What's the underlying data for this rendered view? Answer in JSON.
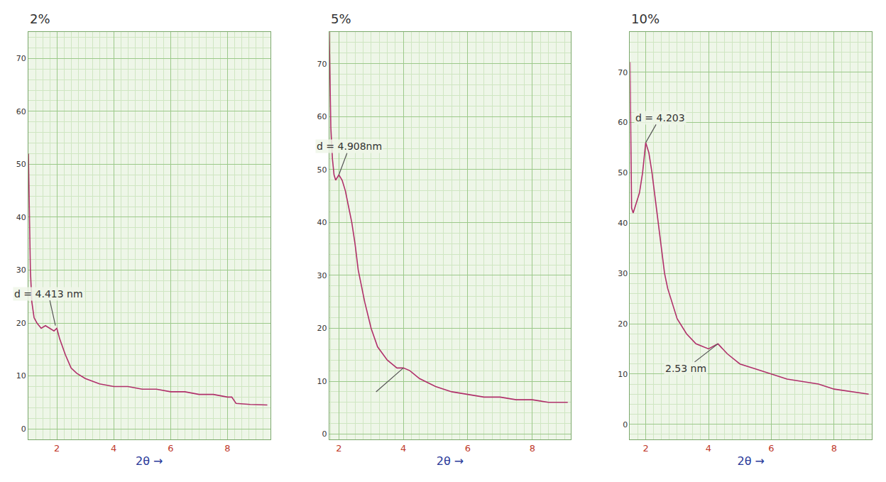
{
  "chart_data": [
    {
      "type": "line",
      "title": "2%",
      "x_label": "2θ →",
      "color": "#b0306a",
      "grid": true,
      "x": [
        1.0,
        1.03,
        1.07,
        1.12,
        1.2,
        1.3,
        1.45,
        1.6,
        1.75,
        1.9,
        2.0,
        2.1,
        2.3,
        2.5,
        2.7,
        3.0,
        3.5,
        4.0,
        4.5,
        5.0,
        5.5,
        6.0,
        6.5,
        7.0,
        7.5,
        8.0,
        8.15,
        8.3,
        8.8,
        9.4
      ],
      "values": [
        52,
        40,
        30,
        24,
        21,
        20,
        19,
        19.5,
        19,
        18.5,
        19,
        17,
        14,
        11.5,
        10.5,
        9.5,
        8.5,
        8,
        8,
        7.5,
        7.5,
        7,
        7,
        6.5,
        6.5,
        6,
        6,
        4.8,
        4.6,
        4.5
      ],
      "xlim": [
        1.0,
        9.5
      ],
      "ylim": [
        -2,
        75
      ],
      "xticks": [
        2,
        4,
        6,
        8
      ],
      "yticks": [
        0,
        10,
        20,
        30,
        40,
        50,
        60,
        70
      ],
      "annotations": [
        {
          "text": "d = 4.413 nm",
          "x": 1.95,
          "y": 19.5
        }
      ]
    },
    {
      "type": "line",
      "title": "5%",
      "x_label": "2θ →",
      "color": "#b0306a",
      "grid": true,
      "x": [
        1.7,
        1.72,
        1.75,
        1.8,
        1.85,
        1.9,
        2.0,
        2.1,
        2.2,
        2.3,
        2.4,
        2.5,
        2.6,
        2.8,
        3.0,
        3.2,
        3.5,
        3.8,
        4.0,
        4.2,
        4.5,
        5.0,
        5.5,
        6.0,
        6.5,
        7.0,
        7.5,
        8.0,
        8.5,
        9.1
      ],
      "values": [
        76,
        68,
        58,
        52,
        49,
        48,
        49,
        48,
        46,
        43,
        40,
        36,
        31,
        25,
        20,
        16.5,
        14,
        12.5,
        12.5,
        12,
        10.5,
        9,
        8,
        7.5,
        7,
        7,
        6.5,
        6.5,
        6,
        6
      ],
      "xlim": [
        1.7,
        9.2
      ],
      "ylim": [
        -1,
        76
      ],
      "xticks": [
        2,
        4,
        6,
        8
      ],
      "yticks": [
        0,
        10,
        20,
        30,
        40,
        50,
        60,
        70
      ],
      "annotations": [
        {
          "text": "d = 4.908nm",
          "x": 2.0,
          "y": 49
        },
        {
          "text": "",
          "x": 4.0,
          "y": 12.5
        }
      ]
    },
    {
      "type": "line",
      "title": "10%",
      "x_label": "2θ →",
      "color": "#b0306a",
      "grid": true,
      "x": [
        1.5,
        1.52,
        1.55,
        1.6,
        1.7,
        1.8,
        1.9,
        2.0,
        2.1,
        2.2,
        2.3,
        2.4,
        2.5,
        2.6,
        2.7,
        2.85,
        3.0,
        3.3,
        3.6,
        4.0,
        4.3,
        4.6,
        5.0,
        5.5,
        6.0,
        6.5,
        7.0,
        7.5,
        8.0,
        8.5,
        9.1
      ],
      "values": [
        72,
        55,
        43,
        42,
        44,
        46,
        50,
        56,
        54,
        50,
        45,
        40,
        35,
        30,
        27,
        24,
        21,
        18,
        16,
        15,
        16,
        14,
        12,
        11,
        10,
        9,
        8.5,
        8,
        7,
        6.5,
        6
      ],
      "xlim": [
        1.5,
        9.2
      ],
      "ylim": [
        -3,
        78
      ],
      "xticks": [
        2,
        4,
        6,
        8
      ],
      "yticks": [
        0,
        10,
        20,
        30,
        40,
        50,
        60,
        70
      ],
      "annotations": [
        {
          "text": "d = 4.203",
          "x": 2.0,
          "y": 56
        },
        {
          "text": "2.53 nm",
          "x": 4.3,
          "y": 16
        }
      ]
    }
  ]
}
